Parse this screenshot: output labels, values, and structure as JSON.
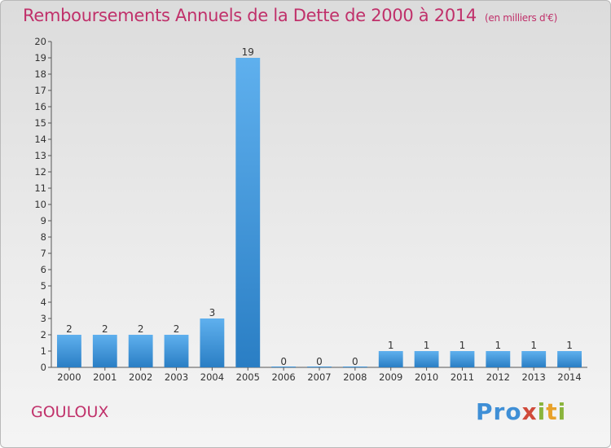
{
  "title": "Remboursements Annuels de la Dette de 2000 à 2014",
  "subtitle": "(en milliers d'€)",
  "commune": "GOULOUX",
  "logo": {
    "text": "Proxiti",
    "colors": [
      "#3f8fd6",
      "#e8a12a",
      "#8ab43c",
      "#d04a3a"
    ]
  },
  "chart_data": {
    "type": "bar",
    "title": "Remboursements Annuels de la Dette de 2000 à 2014",
    "subtitle": "(en milliers d'€)",
    "categories": [
      "2000",
      "2001",
      "2002",
      "2003",
      "2004",
      "2005",
      "2006",
      "2007",
      "2008",
      "2009",
      "2010",
      "2011",
      "2012",
      "2013",
      "2014"
    ],
    "values": [
      2,
      2,
      2,
      2,
      3,
      19,
      0,
      0,
      0,
      1,
      1,
      1,
      1,
      1,
      1
    ],
    "data_labels": [
      "2",
      "2",
      "2",
      "2",
      "3",
      "19",
      "0",
      "0",
      "0",
      "1",
      "1",
      "1",
      "1",
      "1",
      "1"
    ],
    "ylim": [
      0,
      20
    ],
    "yticks": [
      0,
      1,
      2,
      3,
      4,
      5,
      6,
      7,
      8,
      9,
      10,
      11,
      12,
      13,
      14,
      15,
      16,
      17,
      18,
      19,
      20
    ],
    "grid": false,
    "bar_color": "#3b93d9",
    "xlabel": "",
    "ylabel": ""
  }
}
